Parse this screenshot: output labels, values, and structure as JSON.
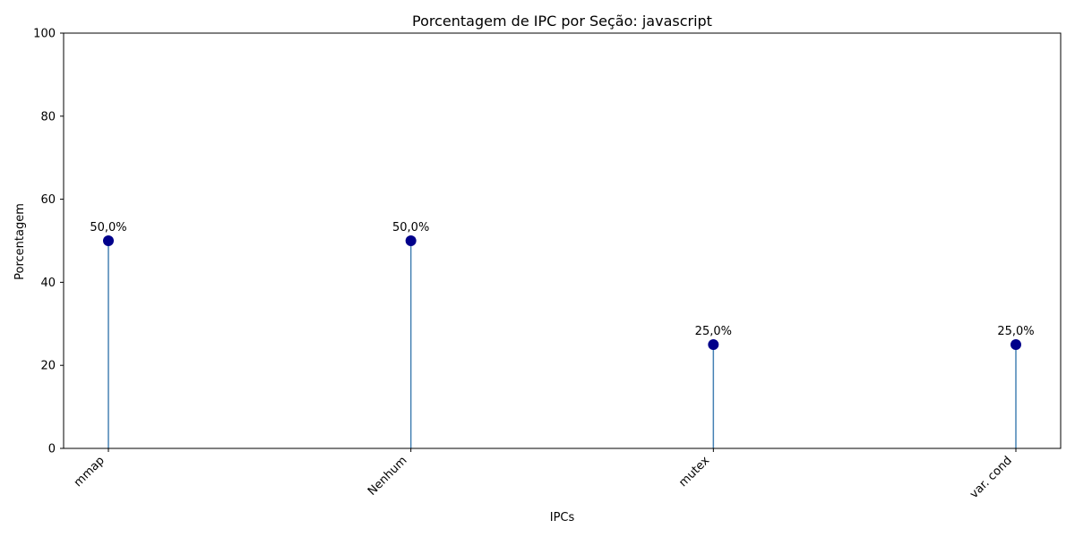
{
  "chart_data": {
    "type": "lollipop",
    "title": "Porcentagem de IPC por Seção: javascript",
    "xlabel": "IPCs",
    "ylabel": "Porcentagem",
    "ylim": [
      0,
      100
    ],
    "yticks": [
      0,
      20,
      40,
      60,
      80,
      100
    ],
    "categories": [
      "mmap",
      "Nenhum",
      "mutex",
      "var. cond"
    ],
    "values": [
      50.0,
      50.0,
      25.0,
      25.0
    ],
    "data_labels": [
      "50,0%",
      "50,0%",
      "25,0%",
      "25,0%"
    ],
    "grid": false,
    "colors": {
      "marker": "#00008b",
      "stem": "#4682b4"
    }
  }
}
